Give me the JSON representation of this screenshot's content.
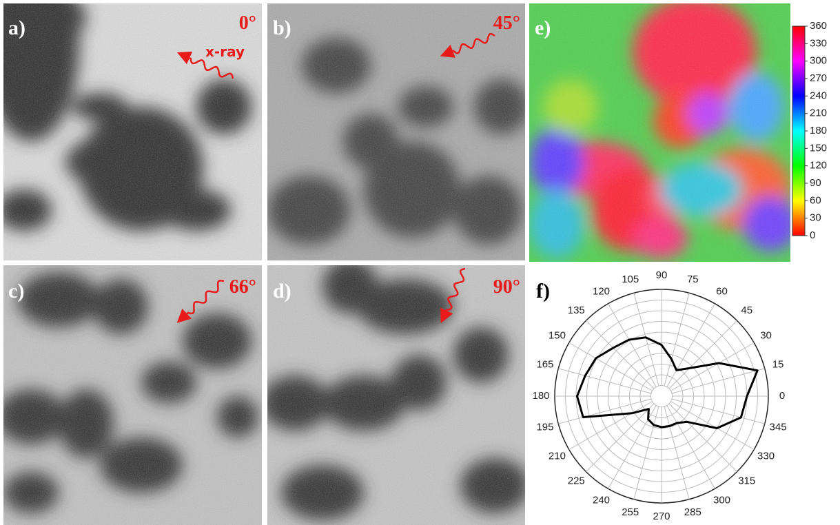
{
  "panels": [
    {
      "label": "a)",
      "angle": "0°",
      "beam": "x-ray"
    },
    {
      "label": "b)",
      "angle": "45°"
    },
    {
      "label": "c)",
      "angle": "66°"
    },
    {
      "label": "d)",
      "angle": "90°"
    },
    {
      "label": "e)"
    }
  ],
  "colorbar": {
    "lim": [
      0,
      360
    ],
    "ticks": [
      0,
      30,
      60,
      90,
      120,
      150,
      180,
      210,
      240,
      270,
      300,
      330,
      360
    ]
  },
  "chart_data": {
    "type": "polar",
    "label": "f)",
    "color": "#000000",
    "theta_ticks": [
      0,
      15,
      30,
      45,
      60,
      75,
      90,
      105,
      120,
      135,
      150,
      165,
      180,
      195,
      210,
      225,
      240,
      255,
      270,
      285,
      300,
      315,
      330,
      345
    ],
    "theta": [
      0,
      15,
      30,
      45,
      60,
      75,
      90,
      105,
      120,
      135,
      150,
      165,
      180,
      195,
      210,
      225,
      240,
      255,
      270,
      285,
      300,
      315,
      330,
      345
    ],
    "values": [
      0.8,
      0.93,
      0.62,
      0.37,
      0.28,
      0.36,
      0.48,
      0.57,
      0.61,
      0.64,
      0.71,
      0.74,
      0.79,
      0.76,
      0.32,
      0.17,
      0.25,
      0.28,
      0.29,
      0.29,
      0.29,
      0.34,
      0.6,
      0.77
    ],
    "rlim": [
      0,
      1
    ],
    "rticks": [
      0.1,
      0.2,
      0.3,
      0.4,
      0.5,
      0.6,
      0.7,
      0.8,
      0.9,
      1.0
    ]
  }
}
